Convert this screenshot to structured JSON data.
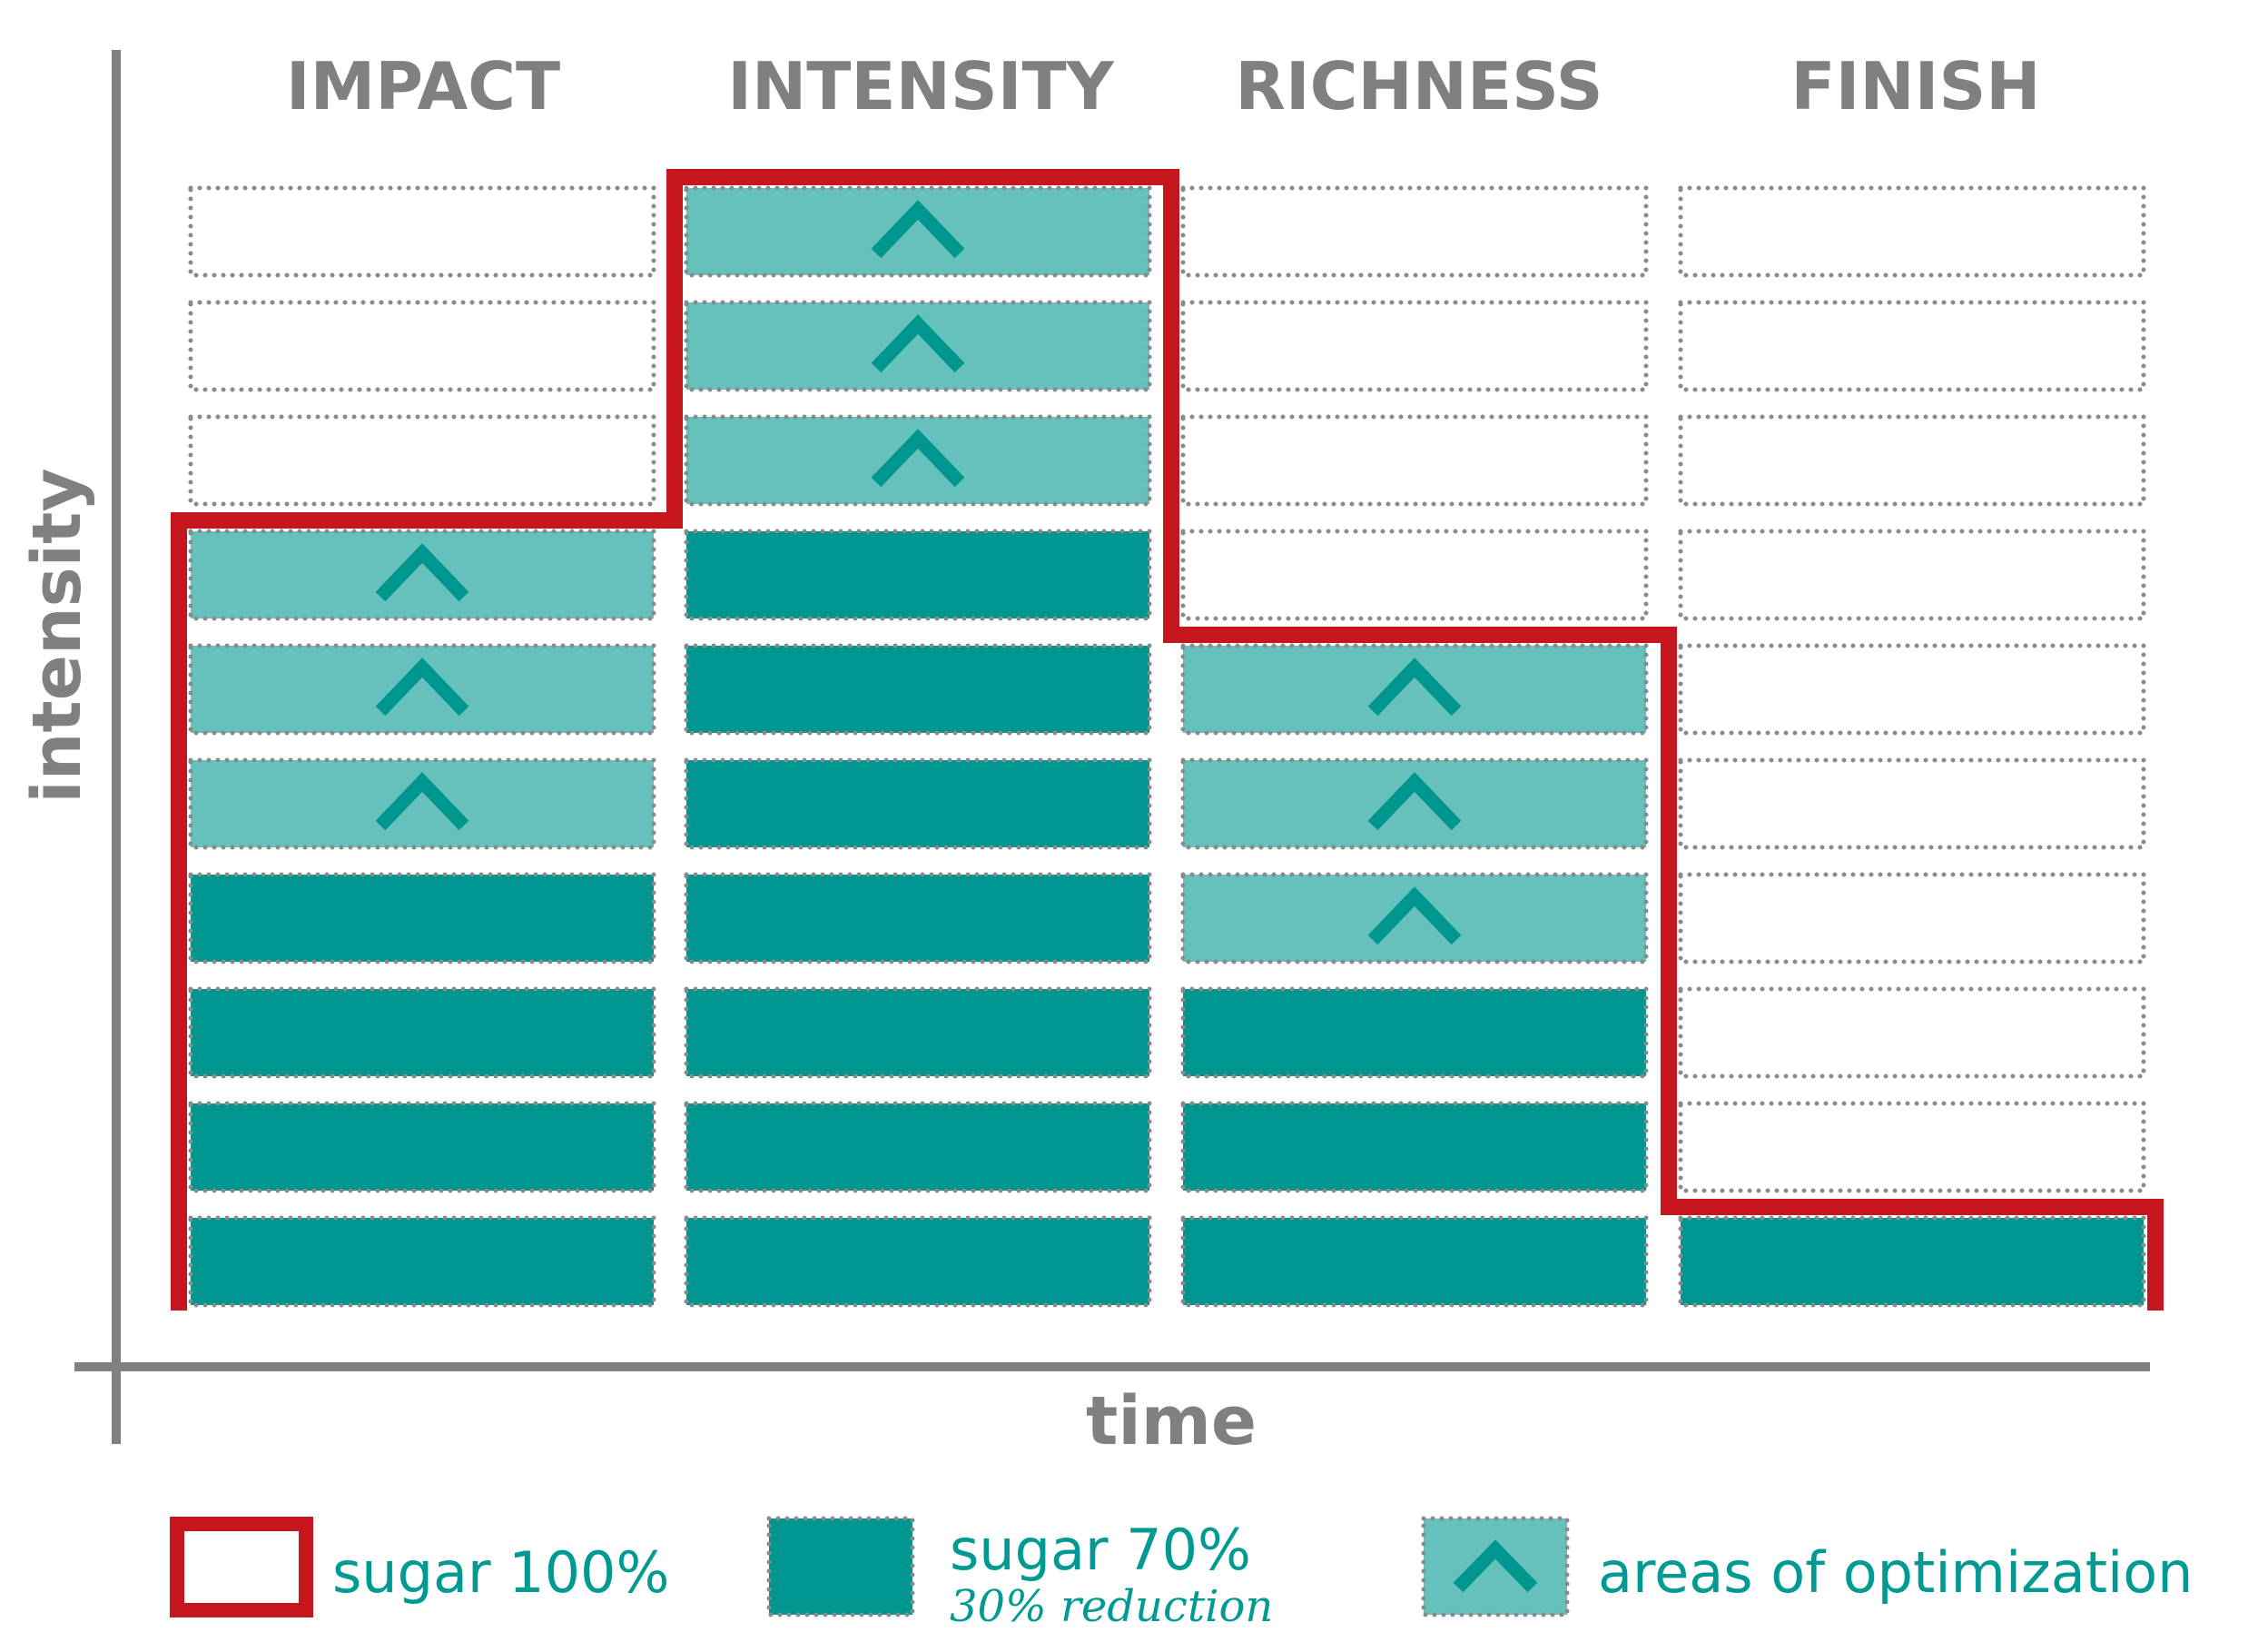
{
  "chart_data": {
    "type": "bar",
    "categories": [
      "IMPACT",
      "INTENSITY",
      "RICHNESS",
      "FINISH"
    ],
    "xlabel": "time",
    "ylabel": "intensity",
    "ylim": [
      0,
      10
    ],
    "series": [
      {
        "name": "sugar 100%",
        "values": [
          7,
          10,
          6,
          1
        ]
      },
      {
        "name": "sugar 70%",
        "values": [
          4,
          7,
          3,
          1
        ]
      },
      {
        "name": "areas of optimization",
        "values": [
          3,
          3,
          3,
          0
        ]
      }
    ],
    "legend": {
      "position": "bottom",
      "items": [
        {
          "label": "sugar 100%",
          "sublabel": ""
        },
        {
          "label": "sugar 70%",
          "sublabel": "30% reduction"
        },
        {
          "label": "areas of optimization",
          "sublabel": ""
        }
      ]
    },
    "grid": true
  },
  "colors": {
    "sugar100": "#c4161c",
    "sugar70": "#009690",
    "optimization": "#66c1bc",
    "chevron": "#009690",
    "axis": "#808080",
    "grid_dots": "#8a8a8a",
    "text_teal": "#009a93"
  },
  "icons": {
    "optimization_marker": "chevron-up-icon"
  }
}
